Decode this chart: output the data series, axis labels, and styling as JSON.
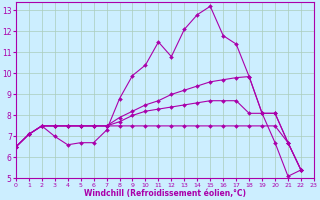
{
  "xlabel": "Windchill (Refroidissement éolien,°C)",
  "background_color": "#cceeff",
  "grid_color": "#aaccbb",
  "line_color": "#aa00aa",
  "xlim": [
    0,
    23
  ],
  "ylim": [
    5,
    13.4
  ],
  "yticks": [
    5,
    6,
    7,
    8,
    9,
    10,
    11,
    12,
    13
  ],
  "xticks": [
    0,
    1,
    2,
    3,
    4,
    5,
    6,
    7,
    8,
    9,
    10,
    11,
    12,
    13,
    14,
    15,
    16,
    17,
    18,
    19,
    20,
    21,
    22,
    23
  ],
  "series": [
    {
      "x": [
        0,
        1,
        2,
        3,
        4,
        5,
        6,
        7,
        8,
        9,
        10,
        11,
        12,
        13,
        14,
        15,
        16,
        17,
        18,
        19,
        20,
        21,
        22
      ],
      "y": [
        6.5,
        7.1,
        7.5,
        7.0,
        6.6,
        6.7,
        6.7,
        7.3,
        8.8,
        9.9,
        10.4,
        11.5,
        10.8,
        12.1,
        12.8,
        13.2,
        11.8,
        11.4,
        9.85,
        8.1,
        6.7,
        5.1,
        5.4
      ]
    },
    {
      "x": [
        0,
        1,
        2,
        3,
        4,
        5,
        6,
        7,
        8,
        9,
        10,
        11,
        12,
        13,
        14,
        15,
        16,
        17,
        18,
        19,
        20,
        21,
        22
      ],
      "y": [
        6.5,
        7.1,
        7.5,
        7.5,
        7.5,
        7.5,
        7.5,
        7.5,
        7.9,
        8.2,
        8.5,
        8.7,
        9.0,
        9.2,
        9.4,
        9.6,
        9.7,
        9.8,
        9.85,
        8.1,
        8.1,
        6.7,
        5.4
      ]
    },
    {
      "x": [
        0,
        1,
        2,
        3,
        4,
        5,
        6,
        7,
        8,
        9,
        10,
        11,
        12,
        13,
        14,
        15,
        16,
        17,
        18,
        19,
        20,
        21,
        22
      ],
      "y": [
        6.5,
        7.1,
        7.5,
        7.5,
        7.5,
        7.5,
        7.5,
        7.5,
        7.7,
        8.0,
        8.2,
        8.3,
        8.4,
        8.5,
        8.6,
        8.7,
        8.7,
        8.7,
        8.1,
        8.1,
        8.1,
        6.7,
        5.4
      ]
    },
    {
      "x": [
        0,
        1,
        2,
        3,
        4,
        5,
        6,
        7,
        8,
        9,
        10,
        11,
        12,
        13,
        14,
        15,
        16,
        17,
        18,
        19,
        20,
        21,
        22
      ],
      "y": [
        6.5,
        7.1,
        7.5,
        7.5,
        7.5,
        7.5,
        7.5,
        7.5,
        7.5,
        7.5,
        7.5,
        7.5,
        7.5,
        7.5,
        7.5,
        7.5,
        7.5,
        7.5,
        7.5,
        7.5,
        7.5,
        6.7,
        5.4
      ]
    }
  ]
}
